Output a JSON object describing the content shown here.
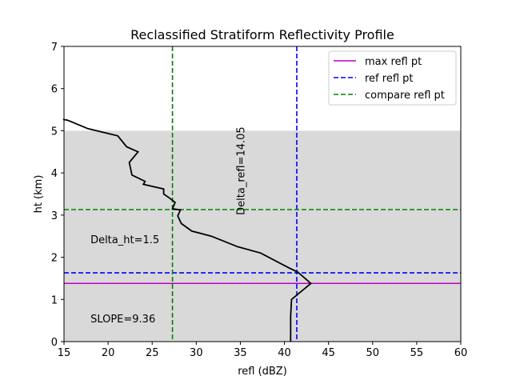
{
  "chart_data": {
    "type": "line",
    "title": "Reclassified Stratiform Reflectivity Profile",
    "xlabel": "refl (dBZ)",
    "ylabel": "ht (km)",
    "xlim": [
      15,
      60
    ],
    "ylim": [
      0,
      7
    ],
    "xticks": [
      15,
      20,
      25,
      30,
      35,
      40,
      45,
      50,
      55,
      60
    ],
    "yticks": [
      0,
      1,
      2,
      3,
      4,
      5,
      6,
      7
    ],
    "shaded_region": {
      "y_from": 0,
      "y_to": 5.0,
      "color": "#d9d9d9"
    },
    "profile": {
      "name": "reflectivity profile",
      "color": "#000000",
      "x": [
        40.7,
        40.7,
        40.8,
        40.8,
        43.0,
        41.5,
        40.5,
        37.3,
        34.7,
        31.7,
        29.5,
        28.3,
        27.9,
        28.2,
        27.3,
        27.6,
        27.0,
        26.3,
        26.3,
        24.0,
        24.2,
        22.7,
        22.4,
        23.4,
        22.1,
        21.1,
        19.3,
        17.7,
        16.9,
        16.0,
        15.4,
        14.9
      ],
      "y": [
        0.0,
        0.6,
        1.0,
        1.0,
        1.38,
        1.65,
        1.75,
        2.1,
        2.25,
        2.5,
        2.62,
        2.8,
        2.98,
        3.12,
        3.15,
        3.3,
        3.4,
        3.5,
        3.62,
        3.73,
        3.8,
        3.95,
        4.25,
        4.5,
        4.62,
        4.88,
        4.97,
        5.05,
        5.12,
        5.2,
        5.25,
        5.27
      ]
    },
    "reference_lines": [
      {
        "name": "max refl pt",
        "orientation": "horizontal",
        "value": 1.38,
        "color": "#bf00bf",
        "style": "solid"
      },
      {
        "name": "ref refl pt",
        "orientation": "horizontal",
        "value": 1.63,
        "color": "#0000ff",
        "style": "dashed"
      },
      {
        "name": "ref refl pt",
        "orientation": "vertical",
        "value": 41.4,
        "color": "#0000ff",
        "style": "dashed"
      },
      {
        "name": "compare refl pt",
        "orientation": "horizontal",
        "value": 3.13,
        "color": "#008000",
        "style": "dashed"
      },
      {
        "name": "compare refl pt",
        "orientation": "vertical",
        "value": 27.3,
        "color": "#008000",
        "style": "dashed"
      }
    ],
    "legend": {
      "position": "top-right",
      "entries": [
        {
          "label": "max refl pt",
          "color": "#bf00bf",
          "style": "solid"
        },
        {
          "label": "ref refl pt",
          "color": "#0000ff",
          "style": "dashed"
        },
        {
          "label": "compare refl pt",
          "color": "#008000",
          "style": "dashed"
        }
      ]
    },
    "annotations": [
      {
        "text": "Delta_ht=1.5",
        "x": 18.0,
        "y": 2.43,
        "rotation": 0
      },
      {
        "text": "SLOPE=9.36",
        "x": 18.0,
        "y": 0.55,
        "rotation": 0
      },
      {
        "text": "Delta_refl=14.05",
        "x": 35.0,
        "y": 3.0,
        "rotation": -90
      }
    ]
  }
}
